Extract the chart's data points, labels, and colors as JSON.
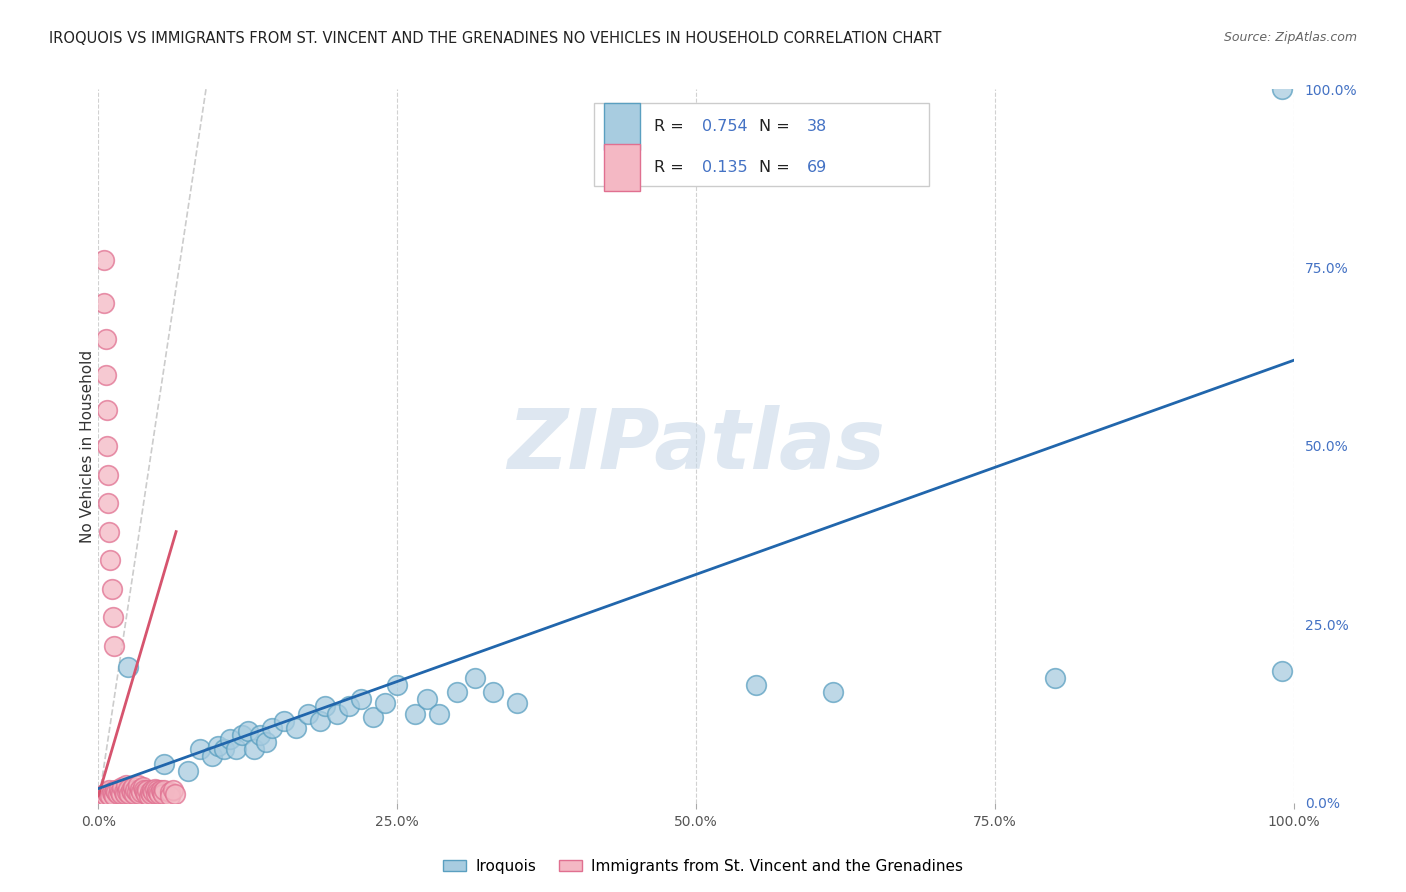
{
  "title": "IROQUOIS VS IMMIGRANTS FROM ST. VINCENT AND THE GRENADINES NO VEHICLES IN HOUSEHOLD CORRELATION CHART",
  "source": "Source: ZipAtlas.com",
  "ylabel": "No Vehicles in Household",
  "xlim": [
    0,
    1.0
  ],
  "ylim": [
    0,
    1.0
  ],
  "xtick_vals": [
    0.0,
    0.25,
    0.5,
    0.75,
    1.0
  ],
  "xtick_labels": [
    "0.0%",
    "25.0%",
    "50.0%",
    "75.0%",
    "100.0%"
  ],
  "ytick_vals": [
    0.0,
    0.25,
    0.5,
    0.75,
    1.0
  ],
  "ytick_labels": [
    "0.0%",
    "25.0%",
    "50.0%",
    "75.0%",
    "100.0%"
  ],
  "series1_label": "Iroquois",
  "series1_fill": "#a8cce0",
  "series1_edge": "#5a9fc0",
  "series1_line": "#2166ac",
  "series1_R": "0.754",
  "series1_N": "38",
  "series2_label": "Immigrants from St. Vincent and the Grenadines",
  "series2_fill": "#f4b8c4",
  "series2_edge": "#e07090",
  "series2_line": "#d6546e",
  "series2_R": "0.135",
  "series2_N": "69",
  "blue_line_x": [
    0.0,
    1.0
  ],
  "blue_line_y": [
    0.02,
    0.62
  ],
  "pink_line_x": [
    0.0,
    0.065
  ],
  "pink_line_y": [
    0.01,
    0.38
  ],
  "dashed_line_x": [
    0.0,
    0.09
  ],
  "dashed_line_y": [
    0.0,
    1.0
  ],
  "watermark_text": "ZIPatlas",
  "watermark_color": "#c8d8e8",
  "background_color": "#ffffff",
  "grid_color": "#cccccc",
  "title_color": "#222222",
  "blue_label_color": "#4472c4",
  "iroquois_x": [
    0.025,
    0.055,
    0.075,
    0.085,
    0.095,
    0.1,
    0.105,
    0.11,
    0.115,
    0.12,
    0.125,
    0.13,
    0.135,
    0.14,
    0.145,
    0.155,
    0.165,
    0.175,
    0.185,
    0.19,
    0.2,
    0.21,
    0.22,
    0.23,
    0.24,
    0.25,
    0.265,
    0.275,
    0.285,
    0.3,
    0.315,
    0.33,
    0.35,
    0.55,
    0.615,
    0.8,
    0.99,
    0.99
  ],
  "iroquois_y": [
    0.19,
    0.055,
    0.045,
    0.075,
    0.065,
    0.08,
    0.075,
    0.09,
    0.075,
    0.095,
    0.1,
    0.075,
    0.095,
    0.085,
    0.105,
    0.115,
    0.105,
    0.125,
    0.115,
    0.135,
    0.125,
    0.135,
    0.145,
    0.12,
    0.14,
    0.165,
    0.125,
    0.145,
    0.125,
    0.155,
    0.175,
    0.155,
    0.14,
    0.165,
    0.155,
    0.175,
    0.185,
    1.0
  ],
  "svg_low_x": [
    0.003,
    0.005,
    0.006,
    0.007,
    0.008,
    0.009,
    0.01,
    0.011,
    0.012,
    0.013,
    0.014,
    0.015,
    0.016,
    0.017,
    0.018,
    0.019,
    0.02,
    0.021,
    0.022,
    0.023,
    0.024,
    0.025,
    0.026,
    0.027,
    0.028,
    0.029,
    0.03,
    0.031,
    0.032,
    0.033,
    0.034,
    0.035,
    0.036,
    0.037,
    0.038,
    0.039,
    0.04,
    0.041,
    0.042,
    0.043,
    0.044,
    0.045,
    0.046,
    0.047,
    0.048,
    0.049,
    0.05,
    0.051,
    0.052,
    0.053,
    0.054,
    0.055,
    0.06,
    0.06,
    0.062,
    0.064
  ],
  "svg_low_y": [
    0.01,
    0.012,
    0.01,
    0.015,
    0.012,
    0.018,
    0.01,
    0.015,
    0.012,
    0.01,
    0.018,
    0.015,
    0.012,
    0.02,
    0.015,
    0.012,
    0.022,
    0.015,
    0.012,
    0.025,
    0.015,
    0.02,
    0.012,
    0.018,
    0.015,
    0.022,
    0.012,
    0.018,
    0.015,
    0.025,
    0.012,
    0.02,
    0.015,
    0.022,
    0.018,
    0.015,
    0.012,
    0.018,
    0.01,
    0.015,
    0.012,
    0.018,
    0.015,
    0.02,
    0.012,
    0.018,
    0.015,
    0.012,
    0.018,
    0.015,
    0.012,
    0.018,
    0.015,
    0.01,
    0.018,
    0.012
  ],
  "svg_high_x": [
    0.005,
    0.005,
    0.006,
    0.006,
    0.007,
    0.007,
    0.008,
    0.008,
    0.009,
    0.01,
    0.011,
    0.012,
    0.013
  ],
  "svg_high_y": [
    0.76,
    0.7,
    0.65,
    0.6,
    0.55,
    0.5,
    0.46,
    0.42,
    0.38,
    0.34,
    0.3,
    0.26,
    0.22
  ]
}
